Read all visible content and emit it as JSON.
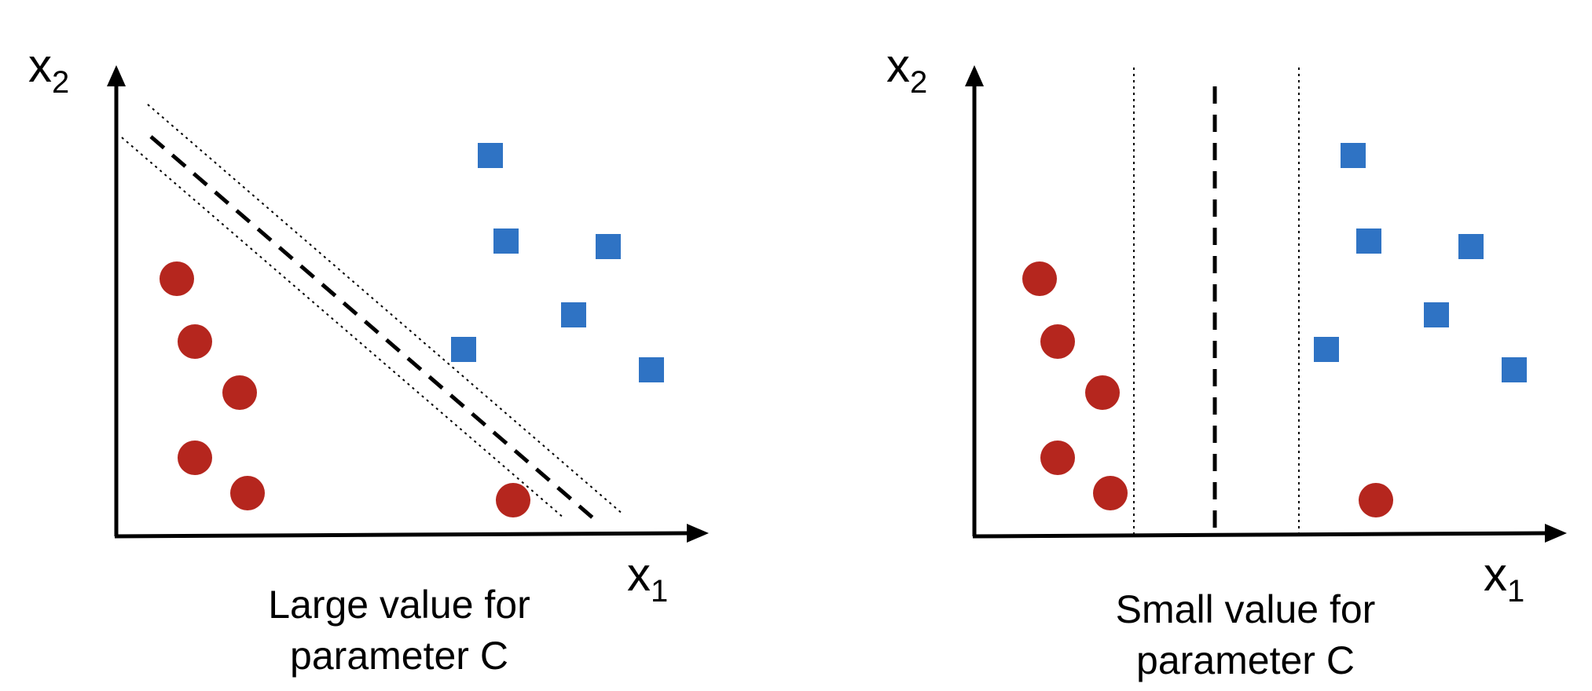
{
  "colors": {
    "class_circle": "#b5261e",
    "class_square": "#2f73c4",
    "axis": "#000000",
    "boundary": "#000000",
    "margin": "#000000"
  },
  "panels": [
    {
      "x_axis_label": "x",
      "x_axis_subscript": "1",
      "y_axis_label": "x",
      "y_axis_subscript": "2",
      "caption_line1": "Large value for",
      "caption_line2": "parameter C",
      "boundary_orientation": "diagonal",
      "circles": 6,
      "squares": 6
    },
    {
      "x_axis_label": "x",
      "x_axis_subscript": "1",
      "y_axis_label": "x",
      "y_axis_subscript": "2",
      "caption_line1": "Small value for",
      "caption_line2": "parameter C",
      "boundary_orientation": "vertical",
      "circles": 6,
      "squares": 6
    }
  ]
}
